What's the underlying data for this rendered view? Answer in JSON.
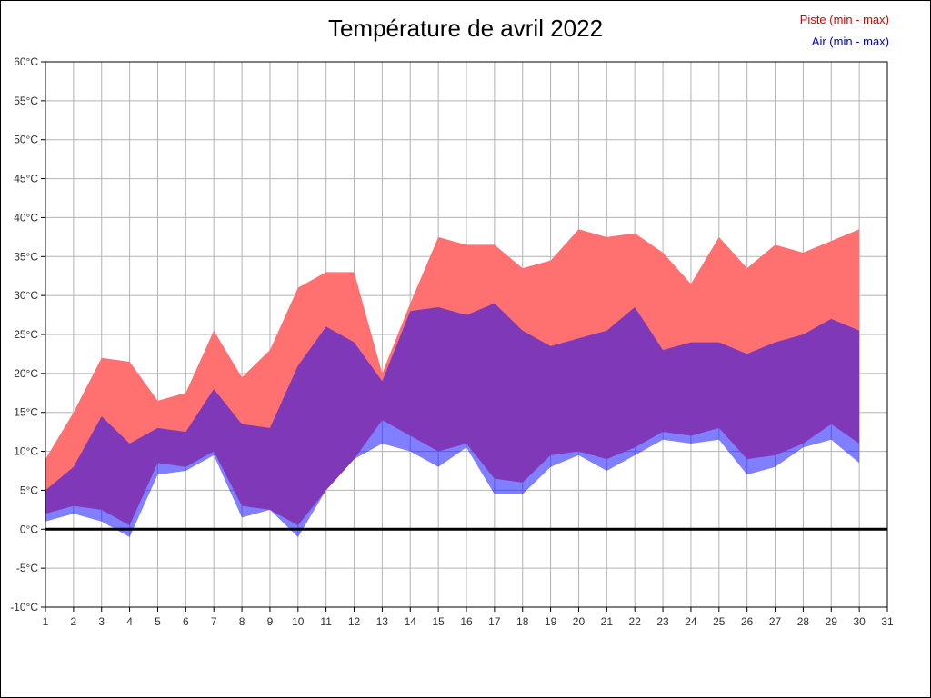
{
  "header": {
    "title": "Température de avril 2022"
  },
  "legend": {
    "piste": "Piste (min - max)",
    "air": "Air (min - max)",
    "piste_color": "#dd0000",
    "air_color": "#0000dd"
  },
  "chart_data": {
    "type": "area",
    "title": "Température de avril 2022",
    "unit": "°C",
    "xlim": [
      1,
      31
    ],
    "ylim": [
      -10,
      60
    ],
    "x_ticks": [
      1,
      2,
      3,
      4,
      5,
      6,
      7,
      8,
      9,
      10,
      11,
      12,
      13,
      14,
      15,
      16,
      17,
      18,
      19,
      20,
      21,
      22,
      23,
      24,
      25,
      26,
      27,
      28,
      29,
      30,
      31
    ],
    "y_ticks": [
      -10,
      -5,
      0,
      5,
      10,
      15,
      20,
      25,
      30,
      35,
      40,
      45,
      50,
      55,
      60
    ],
    "grid": true,
    "days": [
      1,
      2,
      3,
      4,
      5,
      6,
      7,
      8,
      9,
      10,
      11,
      12,
      13,
      14,
      15,
      16,
      17,
      18,
      19,
      20,
      21,
      22,
      23,
      24,
      25,
      26,
      27,
      28,
      29,
      30
    ],
    "series": [
      {
        "name": "Piste (min - max)",
        "color": "#ff7070",
        "min": [
          2,
          3,
          2.5,
          0.5,
          8.5,
          8,
          10,
          3,
          2.5,
          0.5,
          5,
          9,
          14,
          12,
          10,
          11,
          6.5,
          6,
          9.5,
          10,
          9,
          10.5,
          12.5,
          12,
          13,
          9,
          9.5,
          11,
          13.5,
          11
        ],
        "max": [
          9,
          15,
          22,
          21.5,
          16.5,
          17.5,
          25.5,
          19.5,
          23,
          31,
          33,
          33,
          20,
          29,
          37.5,
          36.5,
          36.5,
          33.5,
          34.5,
          38.5,
          37.5,
          38,
          35.5,
          31.5,
          37.5,
          33.5,
          36.5,
          35.5,
          37,
          38.5
        ]
      },
      {
        "name": "Air (min - max)",
        "color": "rgba(0,0,255,0.5)",
        "min": [
          1,
          2,
          1,
          -1,
          7,
          7.5,
          9.5,
          1.5,
          2.5,
          -1,
          5,
          9,
          11,
          10,
          8,
          10.5,
          4.5,
          4.5,
          8,
          9.5,
          7.5,
          9.5,
          11.5,
          11,
          11.5,
          7,
          8,
          10.5,
          11.5,
          8.5
        ],
        "max": [
          5,
          8,
          14.5,
          11,
          13,
          12.5,
          18,
          13.5,
          13,
          21,
          26,
          24,
          19,
          28,
          28.5,
          27.5,
          29,
          25.5,
          23.5,
          24.5,
          25.5,
          28.5,
          23,
          24,
          24,
          22.5,
          24,
          25,
          27,
          25.5
        ]
      }
    ],
    "zero_line": 0,
    "legend_position": "top-right"
  }
}
